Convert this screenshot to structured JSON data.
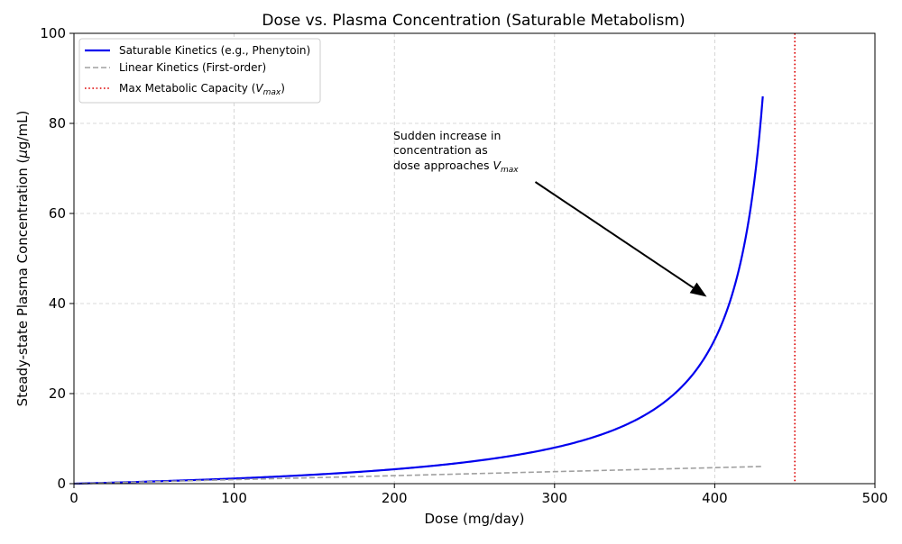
{
  "chart_data": {
    "type": "line",
    "title": "Dose vs. Plasma Concentration (Saturable Metabolism)",
    "xlabel": "Dose (mg/day)",
    "ylabel": "Steady-state Plasma Concentration (µg/mL)",
    "ylabel_parts": {
      "before": "Steady-state Plasma Concentration (",
      "mu": "µ",
      "after": "g/mL)"
    },
    "xlim": [
      0,
      500
    ],
    "ylim": [
      0,
      100
    ],
    "xticks": [
      0,
      100,
      200,
      300,
      400,
      500
    ],
    "yticks": [
      0,
      20,
      40,
      60,
      80,
      100
    ],
    "grid": true,
    "legend_position": "top-left",
    "vmax": 450,
    "km": 4,
    "series": [
      {
        "name": "Saturable Kinetics (e.g., Phenytoin)",
        "color": "#0000ee",
        "style": "solid",
        "x": [
          0,
          25,
          50,
          75,
          100,
          125,
          150,
          175,
          200,
          225,
          250,
          275,
          300,
          325,
          350,
          375,
          390,
          400,
          410,
          415,
          420,
          425,
          430
        ],
        "values": [
          0,
          0.24,
          0.5,
          0.8,
          1.14,
          1.54,
          2.0,
          2.55,
          3.2,
          4.0,
          5.0,
          6.29,
          8.0,
          10.4,
          14.0,
          20.0,
          26.0,
          32.0,
          41.0,
          47.43,
          56.0,
          68.0,
          86.0
        ]
      },
      {
        "name": "Linear Kinetics (First-order)",
        "color": "#a0a0a0",
        "style": "dashed",
        "x": [
          0,
          430
        ],
        "values": [
          0,
          3.82
        ]
      },
      {
        "name": "Max Metabolic Capacity (Vmax)",
        "label_main": "Max Metabolic Capacity (",
        "label_var": "V",
        "label_sub": "max",
        "label_close": ")",
        "color": "#dd0000",
        "style": "dotted",
        "x_value": 450
      }
    ],
    "annotation": {
      "lines": [
        "Sudden increase in",
        "concentration as",
        "dose approaches "
      ],
      "var": "V",
      "sub": "max",
      "text_at": [
        200,
        76.5
      ],
      "arrow_from": [
        288,
        67
      ],
      "arrow_to": [
        395,
        41.5
      ]
    }
  }
}
